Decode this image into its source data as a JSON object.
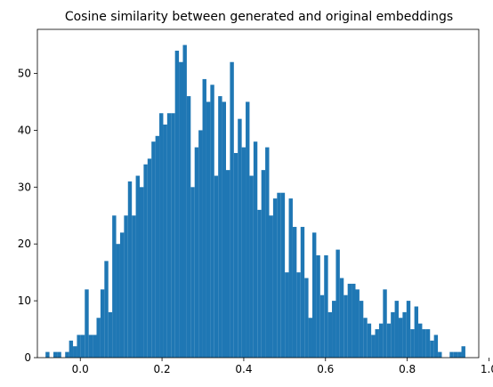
{
  "chart_data": {
    "type": "bar",
    "title": "Cosine similarity between generated and original embeddings",
    "xlabel": "",
    "ylabel": "",
    "xlim": [
      -0.105,
      0.975
    ],
    "ylim": [
      0,
      57.75
    ],
    "grid": false,
    "bar_color": "#1f77b4",
    "bin_start": -0.085,
    "bin_width": 0.0096,
    "values": [
      1,
      0,
      1,
      1,
      0,
      1,
      3,
      2,
      4,
      4,
      12,
      4,
      4,
      7,
      12,
      17,
      8,
      25,
      20,
      22,
      25,
      31,
      25,
      32,
      30,
      34,
      35,
      38,
      39,
      43,
      41,
      43,
      43,
      54,
      52,
      55,
      46,
      30,
      37,
      40,
      49,
      45,
      48,
      32,
      46,
      45,
      33,
      52,
      36,
      42,
      37,
      45,
      32,
      38,
      26,
      33,
      37,
      25,
      28,
      29,
      29,
      15,
      28,
      23,
      15,
      23,
      14,
      7,
      22,
      18,
      11,
      18,
      8,
      10,
      19,
      14,
      11,
      13,
      13,
      12,
      10,
      7,
      6,
      4,
      5,
      6,
      12,
      6,
      8,
      10,
      7,
      8,
      10,
      5,
      9,
      6,
      5,
      5,
      3,
      4,
      1,
      0,
      0,
      1,
      1,
      1,
      2
    ],
    "x_ticks": [
      0.0,
      0.2,
      0.4,
      0.6,
      0.8,
      1.0
    ],
    "x_tick_labels": [
      "0.0",
      "0.2",
      "0.4",
      "0.6",
      "0.8",
      "1.0"
    ],
    "y_ticks": [
      0,
      10,
      20,
      30,
      40,
      50
    ],
    "y_tick_labels": [
      "0",
      "10",
      "20",
      "30",
      "40",
      "50"
    ]
  }
}
